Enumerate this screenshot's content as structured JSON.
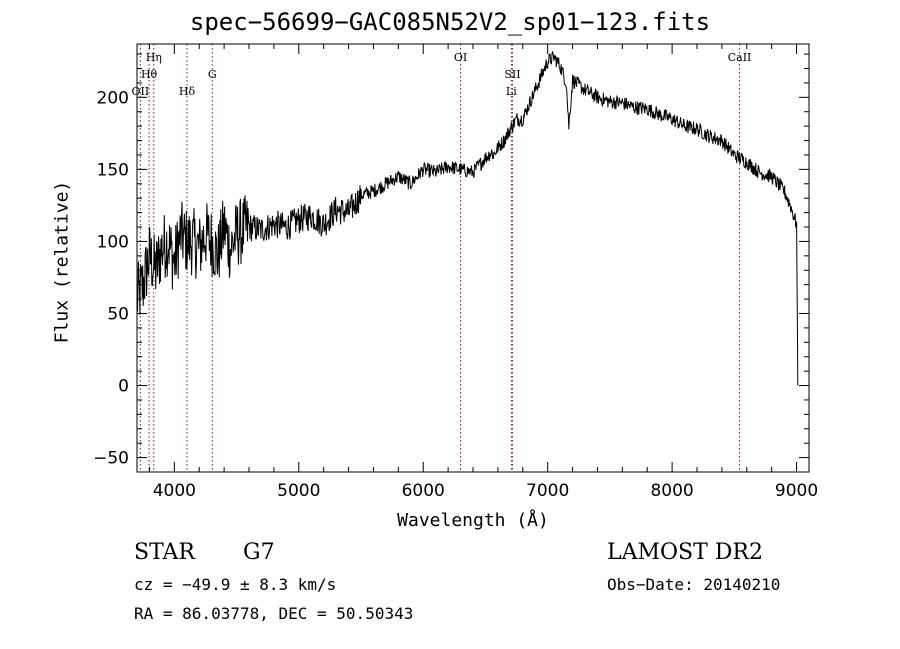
{
  "chart_data": {
    "type": "line",
    "title": "spec−56699−GAC085N52V2_sp01−123.fits",
    "xlabel": "Wavelength (Å)",
    "ylabel": "Flux (relative)",
    "xlim": [
      3700,
      9100
    ],
    "ylim": [
      -60,
      237
    ],
    "x_ticks": [
      4000,
      5000,
      6000,
      7000,
      8000,
      9000
    ],
    "y_ticks": [
      -50,
      0,
      50,
      100,
      150,
      200
    ],
    "grid": false,
    "series": [
      {
        "x": [
          3700,
          3750,
          3800,
          3850,
          3900,
          3950,
          4000,
          4050,
          4100,
          4150,
          4200,
          4250,
          4300,
          4350,
          4400,
          4450,
          4500,
          4600,
          4700,
          4800,
          4900,
          5000,
          5100,
          5200,
          5300,
          5400,
          5500,
          5600,
          5700,
          5800,
          5900,
          6000,
          6100,
          6200,
          6300,
          6400,
          6500,
          6550,
          6563,
          6600,
          6650,
          6700,
          6750,
          6800,
          6850,
          6900,
          6950,
          7000,
          7050,
          7100,
          7150,
          7170,
          7200,
          7300,
          7400,
          7500,
          7600,
          7700,
          7800,
          7900,
          8000,
          8100,
          8200,
          8300,
          8400,
          8500,
          8600,
          8700,
          8800,
          8900,
          8950,
          9000,
          9010
        ],
        "y": [
          60,
          70,
          90,
          80,
          95,
          100,
          85,
          105,
          100,
          100,
          95,
          105,
          100,
          90,
          110,
          95,
          105,
          110,
          108,
          112,
          110,
          115,
          118,
          112,
          122,
          120,
          132,
          135,
          140,
          145,
          140,
          150,
          148,
          152,
          150,
          148,
          158,
          162,
          160,
          165,
          170,
          178,
          185,
          185,
          195,
          205,
          215,
          225,
          228,
          222,
          210,
          180,
          212,
          205,
          200,
          197,
          196,
          193,
          192,
          188,
          185,
          180,
          178,
          173,
          170,
          160,
          155,
          148,
          145,
          135,
          125,
          112,
          0
        ]
      }
    ],
    "line_markers": [
      {
        "label": "Hη",
        "wavelength": 3835,
        "label_row": 0
      },
      {
        "label": "Hθ",
        "wavelength": 3797,
        "label_row": 1
      },
      {
        "label": "OII",
        "wavelength": 3727,
        "label_row": 2
      },
      {
        "label": "Hδ",
        "wavelength": 4102,
        "label_row": 2
      },
      {
        "label": "G",
        "wavelength": 4305,
        "label_row": 1
      },
      {
        "label": "OI",
        "wavelength": 6300,
        "label_row": 0
      },
      {
        "label": "SII",
        "wavelength": 6717,
        "label_row": 1
      },
      {
        "label": "Li",
        "wavelength": 6708,
        "label_row": 2
      },
      {
        "label": "CaII",
        "wavelength": 8542,
        "label_row": 0
      }
    ]
  },
  "info": {
    "class": "STAR",
    "subclass": "G7",
    "survey": "LAMOST DR2",
    "cz": "cz = −49.9 ± 8.3 km/s",
    "obs_date": "Obs−Date: 20140210",
    "radec": "RA =  86.03778, DEC =  50.50343"
  }
}
